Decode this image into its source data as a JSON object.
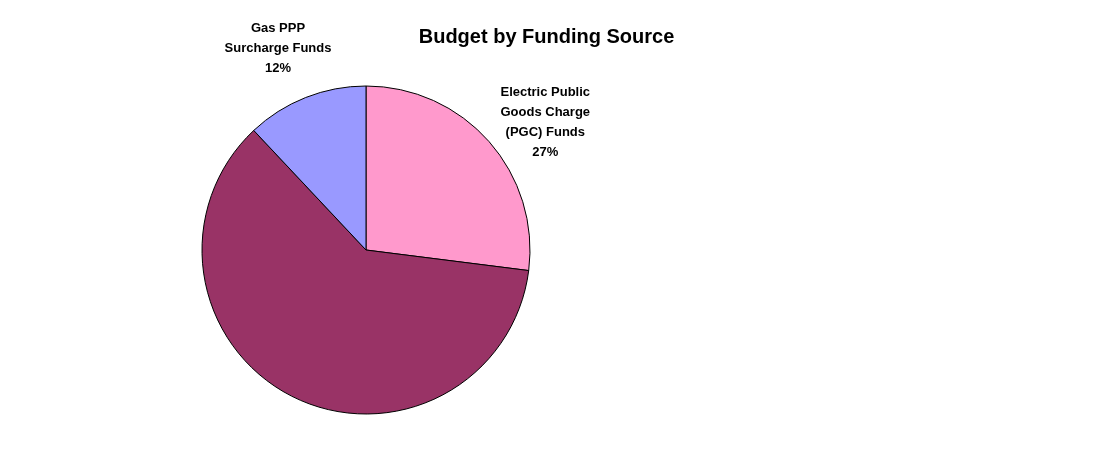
{
  "chart_data": {
    "type": "pie",
    "title": "Budget by Funding Source",
    "categories": [
      "Electric Public\nGoods Charge\n(PGC) Funds",
      null,
      "Gas PPP\nSurcharge Funds"
    ],
    "values": [
      27,
      61,
      12
    ],
    "value_labels": [
      "27%",
      null,
      "12%"
    ],
    "colors": [
      "#ff99cc",
      "#993366",
      "#9999ff"
    ],
    "legend": false
  }
}
